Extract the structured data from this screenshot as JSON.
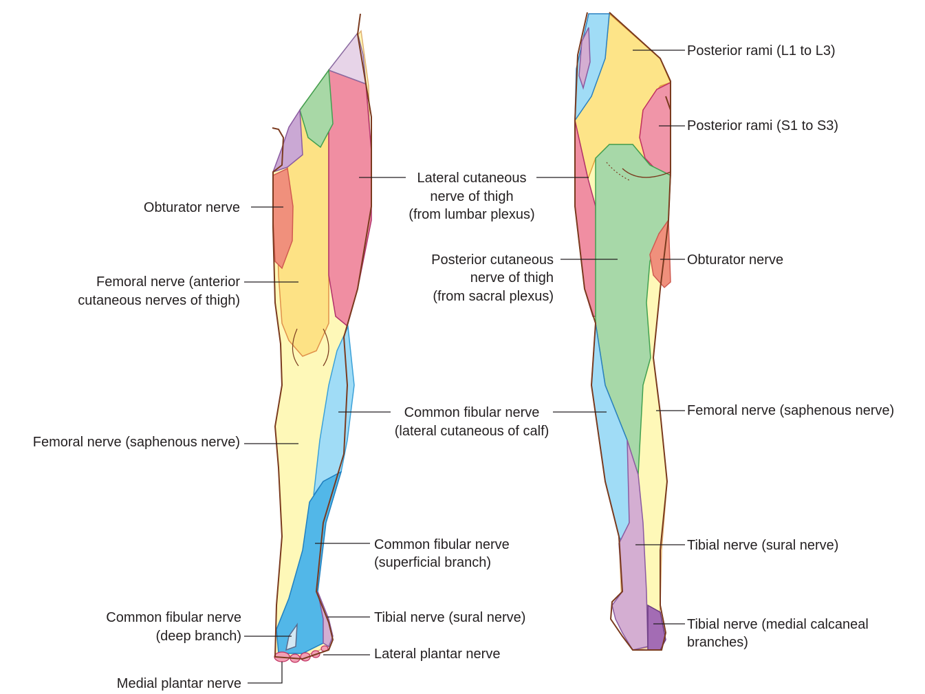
{
  "colors": {
    "posterior_rami_l1_l3": "#fde488",
    "posterior_rami_s1_s3": "#f095a8",
    "lateral_cutaneous_thigh": "#f08ea2",
    "obturator": "#f0907c",
    "femoral_anterior": "#fde285",
    "femoral_saphenous": "#fef8b8",
    "posterior_cutaneous_thigh": "#a7d8a8",
    "common_fibular_lateral": "#a0dcf6",
    "common_fibular_superficial": "#52b7e8",
    "common_fibular_deep": "#d4e8f4",
    "tibial_sural": "#d4aed2",
    "tibial_calcaneal": "#a36cb4",
    "genital": "#e7d4e8",
    "ilioinguinal": "#a8d8a6",
    "genitofemoral": "#caa8d4",
    "plantar": "#f2a0b4",
    "outline": "#7a3a1e"
  },
  "anterior_labels": {
    "obturator": "Obturator nerve",
    "femoral_anterior_1": "Femoral nerve (anterior",
    "femoral_anterior_2": "cutaneous nerves of thigh)",
    "femoral_saphenous": "Femoral nerve (saphenous nerve)",
    "fibular_deep_1": "Common fibular nerve",
    "fibular_deep_2": "(deep branch)",
    "medial_plantar": "Medial plantar nerve",
    "fibular_superficial_1": "Common fibular nerve",
    "fibular_superficial_2": "(superficial branch)",
    "tibial_sural": "Tibial nerve (sural nerve)",
    "lateral_plantar": "Lateral plantar nerve"
  },
  "center_labels": {
    "lateral_cut_1": "Lateral cutaneous",
    "lateral_cut_2": "nerve of thigh",
    "lateral_cut_3": "(from lumbar plexus)",
    "posterior_cut_1": "Posterior cutaneous",
    "posterior_cut_2": "nerve of thigh",
    "posterior_cut_3": "(from sacral plexus)",
    "fibular_lateral_1": "Common fibular nerve",
    "fibular_lateral_2": "(lateral cutaneous of calf)"
  },
  "posterior_labels": {
    "rami_l": "Posterior rami (L1 to L3)",
    "rami_s": "Posterior rami (S1 to S3)",
    "obturator": "Obturator nerve",
    "femoral_saphenous": "Femoral nerve (saphenous nerve)",
    "tibial_sural": "Tibial nerve (sural nerve)",
    "tibial_calcaneal_1": "Tibial nerve (medial calcaneal",
    "tibial_calcaneal_2": "branches)"
  }
}
